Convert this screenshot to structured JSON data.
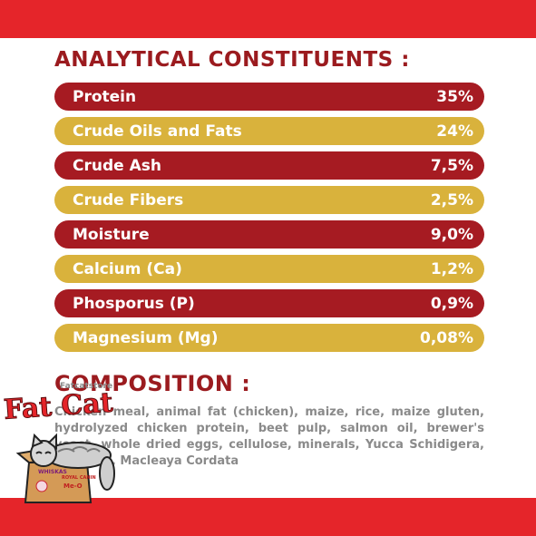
{
  "analytical": {
    "title": "ANALYTICAL CONSTITUENTS :",
    "rows": [
      {
        "label": "Protein",
        "value": "35%"
      },
      {
        "label": "Crude Oils and Fats",
        "value": "24%"
      },
      {
        "label": "Crude Ash",
        "value": "7,5%"
      },
      {
        "label": "Crude Fibers",
        "value": "2,5%"
      },
      {
        "label": "Moisture",
        "value": "9,0%"
      },
      {
        "label": "Calcium (Ca)",
        "value": "1,2%"
      },
      {
        "label": "Phosporus (P)",
        "value": "0,9%"
      },
      {
        "label": "Magnesium (Mg)",
        "value": "0,08%"
      }
    ]
  },
  "composition": {
    "title": "COMPOSITION :",
    "text": "Chicken meal, animal fat (chicken), maize, rice, maize gluten, hydrolyzed chicken protein, beet pulp, salmon oil, brewer's yeast, whole dried eggs, cellulose, minerals, Yucca Schidigera, vitamins, Macleaya Cordata"
  },
  "sticker": {
    "brand_text": "Fat Cat",
    "small_text": "Fatcatstore",
    "box_text_1": "WHISKAS",
    "box_text_2": "ROYAL CANIN",
    "box_text_3": "Me-O"
  },
  "colors": {
    "band": "#e5252a",
    "row_red": "#a61b22",
    "row_gold": "#d9b23c",
    "heading": "#9b1b1f",
    "body_text": "#8a8a8a"
  }
}
